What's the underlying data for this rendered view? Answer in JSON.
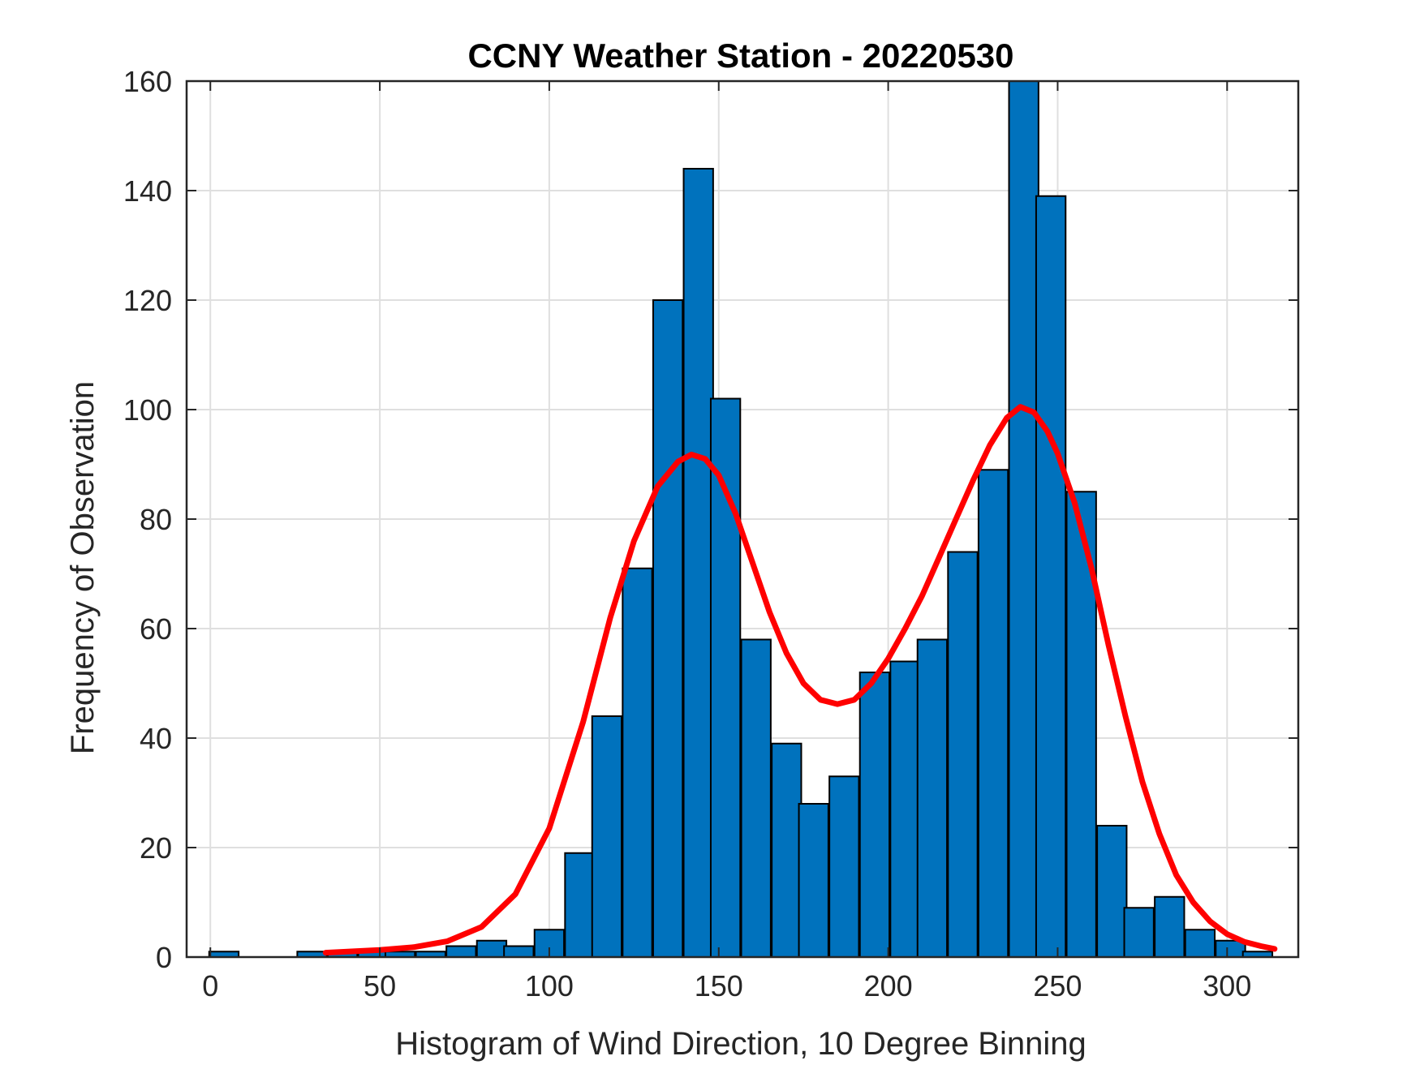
{
  "chart_data": {
    "type": "bar",
    "title": "CCNY Weather Station - 20220530",
    "xlabel": "Histogram of Wind Direction, 10 Degree Binning",
    "ylabel": "Frequency of Observation",
    "xlim": [
      -7,
      321
    ],
    "ylim": [
      0,
      160
    ],
    "grid": true,
    "xticks": [
      0,
      50,
      100,
      150,
      200,
      250,
      300
    ],
    "yticks": [
      0,
      20,
      40,
      60,
      80,
      100,
      120,
      140,
      160
    ],
    "bin_width": 8.7,
    "bins": [
      {
        "center": 4,
        "value": 1
      },
      {
        "center": 13,
        "value": 0
      },
      {
        "center": 22,
        "value": 0
      },
      {
        "center": 30,
        "value": 1
      },
      {
        "center": 39,
        "value": 1
      },
      {
        "center": 48,
        "value": 1
      },
      {
        "center": 56,
        "value": 1
      },
      {
        "center": 65,
        "value": 1
      },
      {
        "center": 74,
        "value": 2
      },
      {
        "center": 83,
        "value": 3
      },
      {
        "center": 91,
        "value": 2
      },
      {
        "center": 100,
        "value": 5
      },
      {
        "center": 109,
        "value": 19
      },
      {
        "center": 117,
        "value": 44
      },
      {
        "center": 126,
        "value": 71
      },
      {
        "center": 135,
        "value": 120
      },
      {
        "center": 144,
        "value": 144
      },
      {
        "center": 152,
        "value": 102
      },
      {
        "center": 161,
        "value": 58
      },
      {
        "center": 170,
        "value": 39
      },
      {
        "center": 178,
        "value": 28
      },
      {
        "center": 187,
        "value": 33
      },
      {
        "center": 196,
        "value": 52
      },
      {
        "center": 205,
        "value": 54
      },
      {
        "center": 213,
        "value": 58
      },
      {
        "center": 222,
        "value": 74
      },
      {
        "center": 231,
        "value": 89
      },
      {
        "center": 240,
        "value": 160
      },
      {
        "center": 248,
        "value": 139
      },
      {
        "center": 257,
        "value": 85
      },
      {
        "center": 266,
        "value": 24
      },
      {
        "center": 274,
        "value": 9
      },
      {
        "center": 283,
        "value": 11
      },
      {
        "center": 292,
        "value": 5
      },
      {
        "center": 301,
        "value": 3
      },
      {
        "center": 309,
        "value": 1
      }
    ],
    "fit_curve": {
      "name": "fit",
      "color": "#ff0000",
      "x": [
        34,
        50,
        60,
        70,
        80,
        90,
        100,
        110,
        118,
        125,
        132,
        138,
        142,
        146,
        150,
        155,
        160,
        165,
        170,
        175,
        180,
        185,
        190,
        195,
        200,
        205,
        210,
        215,
        220,
        225,
        230,
        235,
        239,
        243,
        247,
        250,
        255,
        260,
        265,
        270,
        275,
        280,
        285,
        290,
        295,
        300,
        305,
        310,
        314
      ],
      "y": [
        0.8,
        1.3,
        1.8,
        2.9,
        5.5,
        11.5,
        23.5,
        43,
        62,
        76,
        86,
        90.5,
        91.8,
        91,
        88,
        81,
        72,
        63,
        55.5,
        50,
        47,
        46.2,
        47,
        50,
        54.5,
        60,
        66,
        73,
        80,
        87,
        93.5,
        98.5,
        100.5,
        99.5,
        96,
        92,
        83,
        71,
        57,
        44,
        32,
        22.5,
        15,
        10,
        6.5,
        4.2,
        2.8,
        2,
        1.5
      ]
    },
    "colors": {
      "bar_fill": "#0072bd",
      "bar_edge": "#000000",
      "grid": "#dfdfdf",
      "axes": "#262626"
    }
  }
}
